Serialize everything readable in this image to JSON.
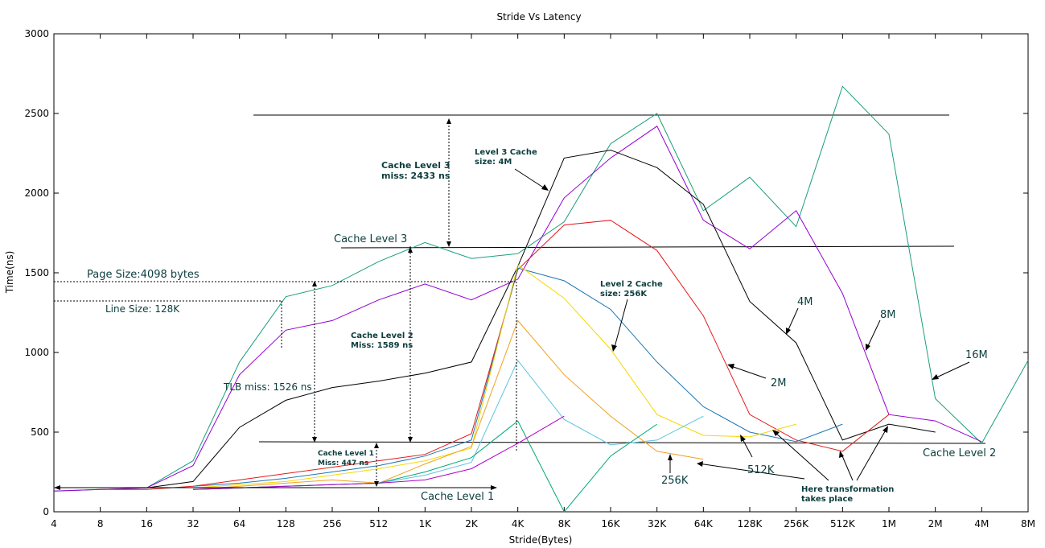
{
  "chart_data": {
    "type": "line",
    "title": "Stride Vs Latency",
    "xlabel": "Stride(Bytes)",
    "ylabel": "Time(ns)",
    "categories": [
      "4",
      "8",
      "16",
      "32",
      "64",
      "128",
      "256",
      "512",
      "1K",
      "2K",
      "4K",
      "8K",
      "16K",
      "32K",
      "64K",
      "128K",
      "256K",
      "512K",
      "1M",
      "2M",
      "4M",
      "8M"
    ],
    "yticks": [
      0,
      500,
      1000,
      1500,
      2000,
      2500,
      3000
    ],
    "ylim": [
      0,
      3000
    ],
    "grid": false,
    "series": [
      {
        "color": "#1a9e7e",
        "values": [
          130,
          140,
          150,
          320,
          940,
          1350,
          1420,
          1570,
          1690,
          1590,
          1620,
          1820,
          2310,
          2500,
          1890,
          2100,
          1790,
          2670,
          2370,
          710,
          430,
          950
        ]
      },
      {
        "color": "#9400d3",
        "values": [
          130,
          140,
          150,
          290,
          860,
          1140,
          1200,
          1330,
          1430,
          1330,
          1460,
          1970,
          2220,
          2420,
          1830,
          1650,
          1890,
          1370,
          610,
          570,
          440,
          null
        ]
      },
      {
        "color": "#000000",
        "values": [
          null,
          null,
          150,
          190,
          530,
          700,
          780,
          820,
          870,
          940,
          1540,
          2220,
          2270,
          2160,
          1930,
          1320,
          1060,
          450,
          550,
          500,
          null,
          null
        ]
      },
      {
        "color": "#e41a1c",
        "values": [
          null,
          140,
          140,
          160,
          200,
          240,
          280,
          320,
          360,
          490,
          1520,
          1800,
          1830,
          1640,
          1230,
          610,
          450,
          380,
          610,
          null,
          null,
          null
        ]
      },
      {
        "color": "#1f77b4",
        "values": [
          null,
          null,
          null,
          160,
          180,
          210,
          250,
          290,
          350,
          450,
          1530,
          1450,
          1270,
          940,
          660,
          500,
          440,
          550,
          null,
          null,
          null,
          null
        ]
      },
      {
        "color": "#f5d800",
        "values": [
          null,
          null,
          null,
          150,
          170,
          190,
          230,
          270,
          320,
          400,
          1550,
          1340,
          1020,
          610,
          480,
          470,
          550,
          null,
          null,
          null,
          null,
          null
        ]
      },
      {
        "color": "#f0a020",
        "values": [
          null,
          null,
          null,
          140,
          160,
          180,
          200,
          180,
          300,
          410,
          1200,
          860,
          600,
          380,
          330,
          null,
          null,
          null,
          null,
          null,
          null,
          null
        ]
      },
      {
        "color": "#5dc3e0",
        "values": [
          null,
          null,
          null,
          140,
          150,
          160,
          170,
          180,
          230,
          310,
          950,
          580,
          420,
          450,
          600,
          null,
          null,
          null,
          null,
          null,
          null,
          null
        ]
      },
      {
        "color": "#00a878",
        "values": [
          null,
          null,
          null,
          140,
          150,
          160,
          170,
          180,
          250,
          340,
          570,
          0,
          350,
          550,
          null,
          null,
          null,
          null,
          null,
          null,
          null,
          null
        ]
      },
      {
        "color": "#b000c8",
        "values": [
          null,
          null,
          null,
          140,
          150,
          160,
          170,
          180,
          200,
          270,
          430,
          600,
          null,
          null,
          null,
          null,
          null,
          null,
          null,
          null,
          null,
          null
        ]
      }
    ],
    "annotations": {
      "cache_level_1": "Cache Level 1",
      "cache_level_2": "Cache Level 2",
      "cache_level_3": "Cache Level 3",
      "page_size": "Page Size:4098 bytes",
      "line_size": "Line Size: 128K",
      "tlb_miss": "TLB miss: 1526 ns",
      "l3_miss_1": "Cache Level 3",
      "l3_miss_2": "miss: 2433 ns",
      "l2_miss_1": "Cache Level 2",
      "l2_miss_2": "Miss: 1589 ns",
      "l1_miss_1": "Cache Level 1",
      "l1_miss_2": "Miss: 447 ns",
      "l3_size_1": "Level 3 Cache",
      "l3_size_2": "size: 4M",
      "l2_size_1": "Level 2 Cache",
      "l2_size_2": "size: 256K",
      "label_4m": "4M",
      "label_8m": "8M",
      "label_16m": "16M",
      "label_2m": "2M",
      "label_512k": "512K",
      "label_256k": "256K",
      "transform_1": "Here transformation",
      "transform_2": "takes place"
    }
  }
}
